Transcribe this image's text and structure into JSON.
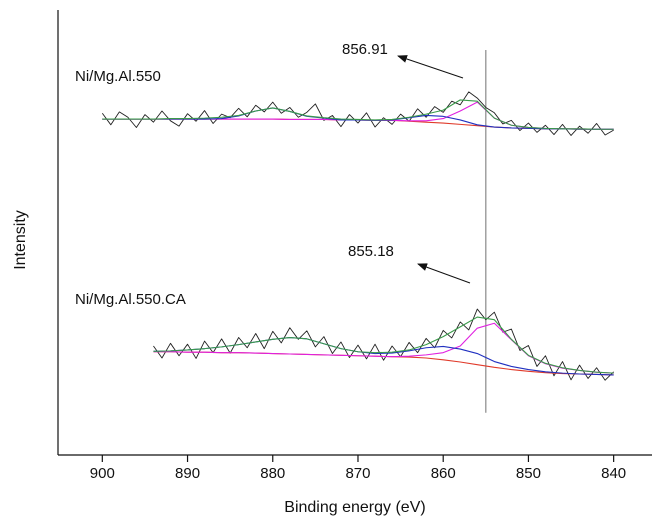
{
  "chart_data": {
    "type": "line",
    "xlabel": "Binding energy (eV)",
    "ylabel": "Intensity",
    "xlim": [
      905.2,
      835.5
    ],
    "ylim": [
      0,
      100
    ],
    "xticks": [
      900,
      890,
      880,
      870,
      860,
      850,
      840
    ],
    "reference_line": {
      "x": 855.0,
      "ylim": [
        9.5,
        91
      ],
      "color": "#888888"
    },
    "annotations": [
      "856.91",
      "855.18"
    ],
    "spectra": [
      {
        "label": "Ni/Mg.Al.550",
        "series": [
          {
            "color": "#222222",
            "x": [
              900,
              899,
              898,
              897,
              896,
              895,
              894,
              893,
              892,
              891,
              890,
              889,
              888,
              887,
              886,
              885,
              884,
              883,
              882,
              881,
              880,
              879,
              878,
              877,
              876,
              875,
              874,
              873,
              872,
              871,
              870,
              869,
              868,
              867,
              866,
              865,
              864,
              863,
              862,
              861,
              860,
              859,
              858,
              857,
              856,
              855,
              854,
              853,
              852,
              851,
              850,
              849,
              848,
              847,
              846,
              845,
              844,
              843,
              842,
              841,
              840
            ],
            "values": [
              76.8,
              74.2,
              77.1,
              75.9,
              73.6,
              76.5,
              74.8,
              77.3,
              75.1,
              73.9,
              76.7,
              75.0,
              77.4,
              74.5,
              76.6,
              75.8,
              77.9,
              76.0,
              78.6,
              77.1,
              79.3,
              76.8,
              78.1,
              75.9,
              77.0,
              78.9,
              75.2,
              76.3,
              73.8,
              76.5,
              74.6,
              76.9,
              73.7,
              75.8,
              74.3,
              76.6,
              75.0,
              77.8,
              75.9,
              78.3,
              77.0,
              79.5,
              78.7,
              81.6,
              80.2,
              78.1,
              76.9,
              74.4,
              75.2,
              72.9,
              74.6,
              72.5,
              74.1,
              72.0,
              74.3,
              71.8,
              73.9,
              72.3,
              74.5,
              71.9,
              73.0
            ]
          },
          {
            "color": "#e03a2a",
            "x": [
              900,
              898,
              896,
              894,
              892,
              890,
              888,
              886,
              884,
              882,
              880,
              878,
              876,
              874,
              872,
              870,
              868,
              866,
              864,
              862,
              860,
              858,
              856,
              854,
              852,
              850,
              848,
              846,
              844,
              842,
              840
            ],
            "values": [
              75.5,
              75.5,
              75.5,
              75.5,
              75.5,
              75.5,
              75.5,
              75.5,
              75.5,
              75.5,
              75.5,
              75.4,
              75.4,
              75.4,
              75.3,
              75.3,
              75.2,
              75.2,
              75.0,
              74.8,
              74.6,
              74.3,
              74.0,
              73.7,
              73.5,
              73.4,
              73.3,
              73.3,
              73.2,
              73.2,
              73.2
            ]
          },
          {
            "color": "#e020e0",
            "x": [
              900,
              898,
              896,
              894,
              892,
              890,
              888,
              886,
              884,
              882,
              880,
              878,
              876,
              874,
              872,
              870,
              868,
              866,
              864,
              862,
              860,
              858,
              856,
              854,
              852,
              850,
              848,
              846,
              844,
              842,
              840
            ],
            "values": [
              75.5,
              75.5,
              75.5,
              75.5,
              75.5,
              75.5,
              75.5,
              75.5,
              75.5,
              75.5,
              75.5,
              75.4,
              75.4,
              75.4,
              75.3,
              75.3,
              75.2,
              75.2,
              75.1,
              75.1,
              75.6,
              77.3,
              79.3,
              75.7,
              74.1,
              73.6,
              73.4,
              73.3,
              73.3,
              73.2,
              73.2
            ]
          },
          {
            "color": "#2030c0",
            "x": [
              900,
              898,
              896,
              894,
              892,
              890,
              888,
              886,
              884,
              882,
              880,
              878,
              876,
              874,
              872,
              870,
              868,
              866,
              864,
              862,
              860,
              858,
              856,
              854,
              852,
              850,
              848,
              846,
              844,
              842,
              840
            ],
            "values": [
              75.5,
              75.5,
              75.5,
              75.5,
              75.5,
              75.5,
              75.5,
              75.6,
              76.2,
              77.3,
              78.0,
              77.2,
              76.1,
              75.7,
              75.3,
              75.3,
              75.2,
              75.3,
              75.8,
              76.3,
              76.1,
              75.3,
              74.2,
              73.7,
              73.5,
              73.4,
              73.3,
              73.3,
              73.2,
              73.2,
              73.2
            ]
          },
          {
            "color": "#3a9a4a",
            "x": [
              900,
              898,
              896,
              894,
              892,
              890,
              888,
              886,
              884,
              882,
              880,
              878,
              876,
              874,
              872,
              870,
              868,
              866,
              864,
              862,
              860,
              858,
              856,
              854,
              852,
              850,
              848,
              846,
              844,
              842,
              840
            ],
            "values": [
              75.5,
              75.5,
              75.5,
              75.5,
              75.6,
              75.6,
              75.7,
              75.9,
              76.3,
              77.3,
              78.0,
              77.2,
              76.2,
              75.8,
              75.5,
              75.4,
              75.3,
              75.4,
              75.9,
              76.6,
              77.5,
              79.8,
              79.5,
              75.7,
              74.1,
              73.6,
              73.4,
              73.3,
              73.3,
              73.2,
              73.2
            ]
          }
        ]
      },
      {
        "label": "Ni/Mg.Al.550.CA",
        "series": [
          {
            "color": "#222222",
            "x": [
              894,
              893,
              892,
              891,
              890,
              889,
              888,
              887,
              886,
              885,
              884,
              883,
              882,
              881,
              880,
              879,
              878,
              877,
              876,
              875,
              874,
              873,
              872,
              871,
              870,
              869,
              868,
              867,
              866,
              865,
              864,
              863,
              862,
              861,
              860,
              859,
              858,
              857,
              856,
              855,
              854,
              853,
              852,
              851,
              850,
              849,
              848,
              847,
              846,
              845,
              844,
              843,
              842,
              841,
              840
            ],
            "values": [
              24.5,
              21.8,
              25.1,
              22.3,
              24.9,
              21.7,
              25.6,
              23.0,
              26.1,
              22.9,
              26.4,
              24.1,
              27.3,
              23.9,
              27.8,
              25.2,
              28.6,
              26.0,
              27.9,
              24.3,
              26.6,
              22.8,
              25.4,
              21.9,
              24.7,
              21.6,
              24.9,
              21.3,
              24.5,
              22.1,
              25.3,
              23.0,
              26.2,
              24.1,
              28.0,
              26.3,
              29.9,
              28.1,
              32.8,
              30.4,
              32.1,
              27.6,
              28.3,
              23.5,
              24.6,
              19.9,
              22.3,
              17.8,
              21.0,
              16.9,
              20.2,
              17.2,
              19.6,
              16.8,
              18.7
            ]
          },
          {
            "color": "#e03a2a",
            "x": [
              894,
              892,
              890,
              888,
              886,
              884,
              882,
              880,
              878,
              876,
              874,
              872,
              870,
              868,
              866,
              864,
              862,
              860,
              858,
              856,
              854,
              852,
              850,
              848,
              846,
              844,
              842,
              840
            ],
            "values": [
              23.2,
              23.2,
              23.1,
              23.1,
              23.0,
              23.0,
              22.9,
              22.8,
              22.7,
              22.6,
              22.5,
              22.4,
              22.3,
              22.2,
              22.1,
              22.0,
              21.8,
              21.4,
              20.9,
              20.3,
              19.7,
              19.2,
              18.8,
              18.5,
              18.3,
              18.2,
              18.1,
              18.0
            ]
          },
          {
            "color": "#e020e0",
            "x": [
              894,
              892,
              890,
              888,
              886,
              884,
              882,
              880,
              878,
              876,
              874,
              872,
              870,
              868,
              866,
              864,
              862,
              860,
              858,
              856,
              854,
              852,
              850,
              848,
              846,
              844,
              842,
              840
            ],
            "values": [
              23.2,
              23.2,
              23.1,
              23.1,
              23.0,
              23.0,
              22.9,
              22.8,
              22.7,
              22.6,
              22.5,
              22.4,
              22.3,
              22.2,
              22.1,
              22.2,
              22.5,
              23.0,
              24.5,
              28.5,
              29.6,
              25.9,
              22.3,
              20.5,
              19.5,
              19.0,
              18.6,
              18.4
            ]
          },
          {
            "color": "#2030c0",
            "x": [
              894,
              892,
              890,
              888,
              886,
              884,
              882,
              880,
              878,
              876,
              874,
              872,
              870,
              868,
              866,
              864,
              862,
              860,
              858,
              856,
              854,
              852,
              850,
              848,
              846,
              844,
              842,
              840
            ],
            "values": [
              23.3,
              23.4,
              23.6,
              23.9,
              24.3,
              24.8,
              25.4,
              26.0,
              26.4,
              26.1,
              25.0,
              23.9,
              23.2,
              22.8,
              22.9,
              23.4,
              24.1,
              24.4,
              23.8,
              22.8,
              21.0,
              19.9,
              19.2,
              18.7,
              18.4,
              18.2,
              18.1,
              18.0
            ]
          },
          {
            "color": "#3a9a4a",
            "x": [
              894,
              892,
              890,
              888,
              886,
              884,
              882,
              880,
              878,
              876,
              874,
              872,
              870,
              868,
              866,
              864,
              862,
              860,
              858,
              856,
              854,
              852,
              850,
              848,
              846,
              844,
              842,
              840
            ],
            "values": [
              23.3,
              23.4,
              23.6,
              23.9,
              24.3,
              24.8,
              25.4,
              26.0,
              26.4,
              26.1,
              25.0,
              23.9,
              23.2,
              23.0,
              23.1,
              23.6,
              24.8,
              26.6,
              28.8,
              31.0,
              30.4,
              26.0,
              22.4,
              20.6,
              19.6,
              19.0,
              18.6,
              18.4
            ]
          }
        ]
      }
    ]
  }
}
